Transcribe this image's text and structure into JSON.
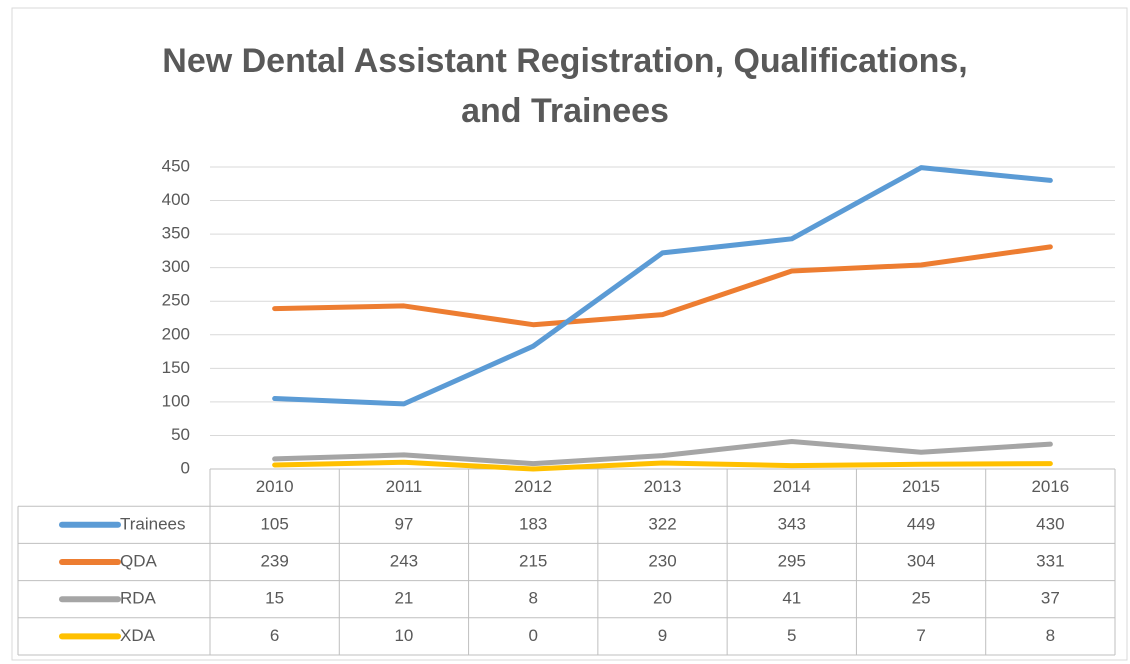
{
  "chart_data": {
    "type": "line",
    "title": "New Dental Assistant Registration, Qualifications, and Trainees",
    "categories": [
      "2010",
      "2011",
      "2012",
      "2013",
      "2014",
      "2015",
      "2016"
    ],
    "series": [
      {
        "name": "Trainees",
        "color": "#5b9bd5",
        "values": [
          105,
          97,
          183,
          322,
          343,
          449,
          430
        ]
      },
      {
        "name": "QDA",
        "color": "#ed7d31",
        "values": [
          239,
          243,
          215,
          230,
          295,
          304,
          331
        ]
      },
      {
        "name": "RDA",
        "color": "#a5a5a5",
        "values": [
          15,
          21,
          8,
          20,
          41,
          25,
          37
        ]
      },
      {
        "name": "XDA",
        "color": "#ffc000",
        "values": [
          6,
          10,
          0,
          9,
          5,
          7,
          8
        ]
      }
    ],
    "ylim": [
      0,
      450
    ],
    "yticks": [
      0,
      50,
      100,
      150,
      200,
      250,
      300,
      350,
      400,
      450
    ],
    "grid": true
  }
}
